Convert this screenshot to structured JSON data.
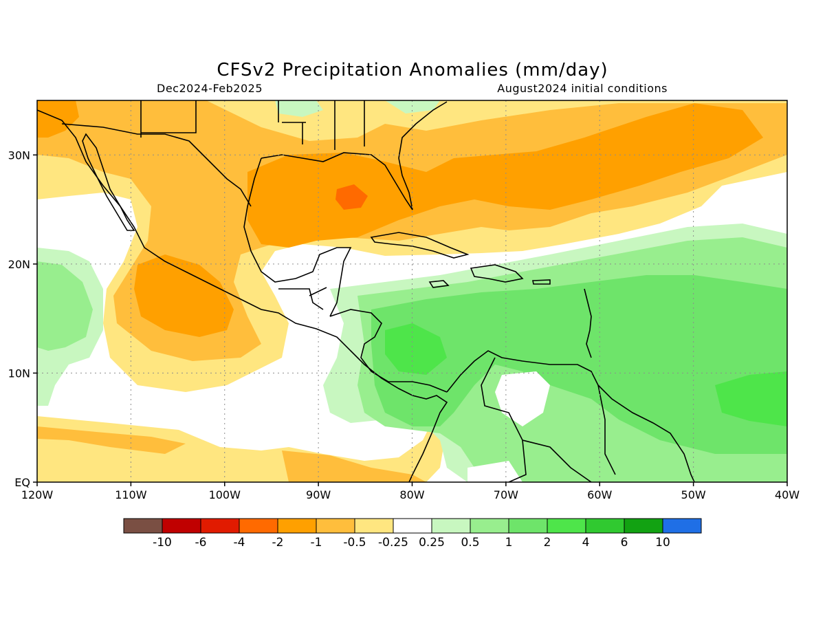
{
  "title": "CFSv2 Precipitation Anomalies (mm/day)",
  "subtitle_left": "Dec2024-Feb2025",
  "subtitle_right": "August2024 initial conditions",
  "map": {
    "lon_range": [
      -120,
      -40
    ],
    "lat_range": [
      0,
      35
    ],
    "lon_ticks": [
      {
        "value": -120,
        "label": "120W"
      },
      {
        "value": -110,
        "label": "110W"
      },
      {
        "value": -100,
        "label": "100W"
      },
      {
        "value": -90,
        "label": "90W"
      },
      {
        "value": -80,
        "label": "80W"
      },
      {
        "value": -70,
        "label": "70W"
      },
      {
        "value": -60,
        "label": "60W"
      },
      {
        "value": -50,
        "label": "50W"
      },
      {
        "value": -40,
        "label": "40W"
      }
    ],
    "lat_ticks": [
      {
        "value": 0,
        "label": "EQ"
      },
      {
        "value": 10,
        "label": "10N"
      },
      {
        "value": 20,
        "label": "20N"
      },
      {
        "value": 30,
        "label": "30N"
      }
    ],
    "grid": true
  },
  "colorbar": {
    "colors": [
      "#7a4f43",
      "#c00000",
      "#e11b00",
      "#ff6a00",
      "#ffa000",
      "#ffbe3c",
      "#ffe680",
      "#ffffff",
      "#c8f7c0",
      "#98ee8e",
      "#6ee46a",
      "#4ee54a",
      "#30c930",
      "#12a212",
      "#1f6fe6"
    ],
    "labels": [
      "-10",
      "-6",
      "-4",
      "-2",
      "-1",
      "-0.5",
      "-0.25",
      "0.25",
      "0.5",
      "1",
      "2",
      "4",
      "6",
      "10"
    ]
  }
}
